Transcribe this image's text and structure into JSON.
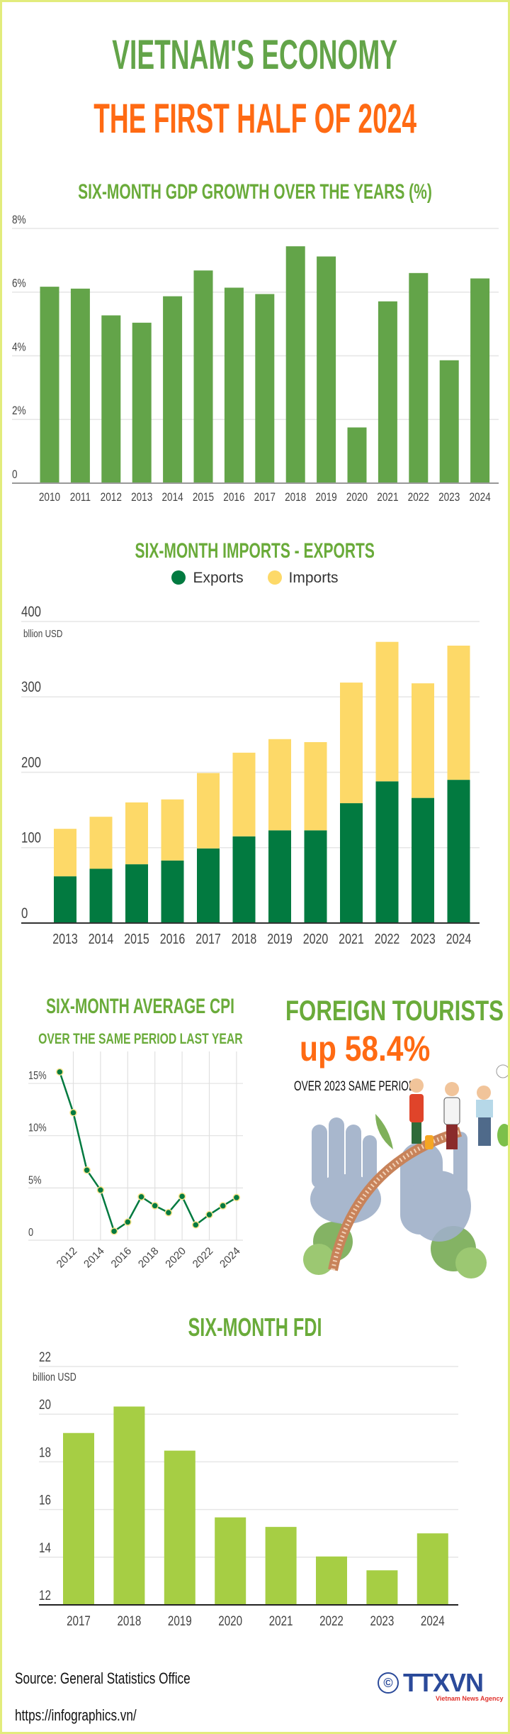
{
  "header": {
    "title": "VIETNAM'S ECONOMY",
    "subtitle": "THE FIRST HALF OF 2024"
  },
  "colors": {
    "title_green": "#6aab3a",
    "title_orange": "#ff6a13",
    "gdp_bar": "#63a449",
    "exports": "#027a40",
    "imports": "#fdd968",
    "fdi_bar": "#a6ce44",
    "cpi_line": "#027a40",
    "border": "#e2ec7c"
  },
  "chart_data": [
    {
      "type": "bar",
      "title": "SIX-MONTH GDP GROWTH OVER THE YEARS (%)",
      "categories": [
        "2010",
        "2011",
        "2012",
        "2013",
        "2014",
        "2015",
        "2016",
        "2017",
        "2018",
        "2019",
        "2020",
        "2021",
        "2022",
        "2023",
        "2024"
      ],
      "values": [
        6.17,
        6.11,
        5.27,
        5.04,
        5.87,
        6.68,
        6.14,
        5.94,
        7.44,
        7.12,
        1.75,
        5.71,
        6.6,
        3.86,
        6.43
      ],
      "ylim": [
        0,
        8
      ],
      "yticks": [
        "0",
        "2%",
        "4%",
        "6%",
        "8%"
      ],
      "grid": true
    },
    {
      "type": "bar",
      "stacked": true,
      "title": "SIX-MONTH IMPORTS - EXPORTS",
      "ylabel": "bllion USD",
      "categories": [
        "2013",
        "2014",
        "2015",
        "2016",
        "2017",
        "2018",
        "2019",
        "2020",
        "2021",
        "2022",
        "2023",
        "2024"
      ],
      "series": [
        {
          "name": "Exports",
          "values": [
            62,
            72,
            78,
            83,
            99,
            115,
            123,
            123,
            159,
            188,
            166,
            190
          ]
        },
        {
          "name": "Imports",
          "values": [
            63,
            69,
            82,
            81,
            100,
            111,
            121,
            117,
            160,
            185,
            152,
            178
          ]
        }
      ],
      "ylim": [
        0,
        400
      ],
      "yticks": [
        "0",
        "100",
        "200",
        "300",
        "400"
      ],
      "legend": "top-center",
      "grid": true
    },
    {
      "type": "line",
      "title": "SIX-MONTH AVERAGE CPI",
      "subtitle": "OVER THE SAME PERIOD LAST YEAR",
      "x": [
        2011,
        2012,
        2013,
        2014,
        2015,
        2016,
        2017,
        2018,
        2019,
        2020,
        2021,
        2022,
        2023,
        2024
      ],
      "values": [
        16.1,
        12.2,
        6.7,
        4.8,
        0.86,
        1.74,
        4.15,
        3.3,
        2.64,
        4.19,
        1.47,
        2.44,
        3.29,
        4.08
      ],
      "xticks": [
        "2012",
        "2014",
        "2016",
        "2018",
        "2020",
        "2022",
        "2024"
      ],
      "yticks": [
        "0",
        "5%",
        "10%",
        "15%"
      ],
      "ylim": [
        0,
        18
      ],
      "grid": true
    },
    {
      "type": "bar",
      "title": "SIX-MONTH FDI",
      "ylabel": "billion USD",
      "categories": [
        "2017",
        "2018",
        "2019",
        "2020",
        "2021",
        "2022",
        "2023",
        "2024"
      ],
      "values": [
        19.21,
        20.32,
        18.47,
        15.67,
        15.27,
        14.03,
        13.45,
        15.0
      ],
      "ylim": [
        12,
        22
      ],
      "yticks": [
        "12",
        "14",
        "16",
        "18",
        "20",
        "22"
      ],
      "grid": true
    }
  ],
  "tourists": {
    "title": "FOREIGN TOURISTS",
    "value": "up 58.4%",
    "note": "OVER 2023 SAME PERIOD",
    "illustration": "golden-bridge-tourists"
  },
  "footer": {
    "source": "Source: General Statistics Office",
    "url": "https://infographics.vn/",
    "logo": {
      "copyright": "©",
      "text": "TTXVN",
      "tagline": "Vietnam News Agency"
    }
  }
}
